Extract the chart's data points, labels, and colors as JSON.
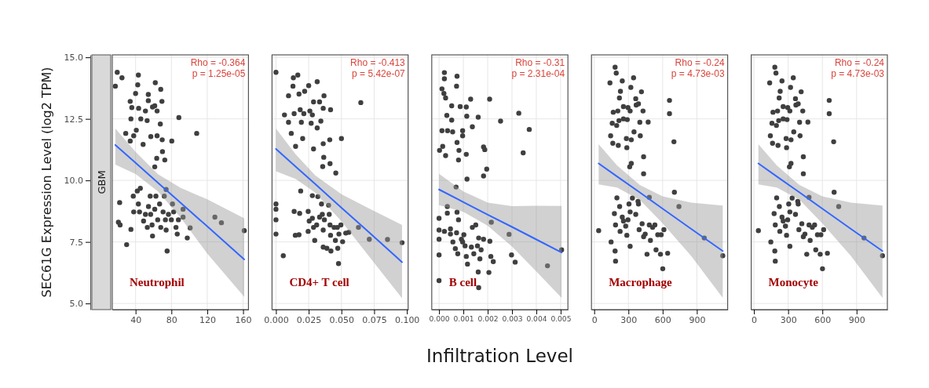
{
  "chart_data": [
    {
      "type": "scatter",
      "title": "Neutrophil",
      "subtitle": "GBM",
      "ylabel": "SEC61G Expression Level (log2 TPM)",
      "annotations": [
        "Rho = -0.364",
        "p = 1.25e-05"
      ],
      "xlim": [
        14,
        166
      ],
      "xticks": [
        40,
        80,
        120,
        160
      ],
      "ylim": [
        4.75,
        15.1
      ],
      "yticks": [
        {
          "value": 5,
          "label": "5.0"
        },
        {
          "value": 7.5,
          "label": "7.5"
        },
        {
          "value": 10,
          "label": "10.0"
        },
        {
          "value": 12.5,
          "label": "12.5"
        },
        {
          "value": 15,
          "label": "15.0"
        }
      ],
      "grid": true,
      "series": [
        {
          "type": "scatter",
          "marker": "circle",
          "color": "#3f3f3f",
          "x": [
            19.5,
            17.4,
            24.8,
            43.1,
            42.4,
            40,
            34,
            35.8,
            43.4,
            34.8,
            45.8,
            40.8,
            29,
            37.9,
            34,
            48.4,
            54.2,
            54.2,
            51,
            52.9,
            58.9,
            62,
            61.4,
            64,
            68.1,
            69.4,
            67.6,
            64,
            57,
            69.7,
            70,
            72.6,
            63.6,
            61.4,
            80.4,
            88.3,
            108.2,
            22.2,
            20.8,
            22.7,
            30,
            34.8,
            37.9,
            37.4,
            41.9,
            45.3,
            43.1,
            44.4,
            48.9,
            51,
            53.1,
            54.4,
            56.3,
            56.8,
            58.9,
            58.4,
            61.4,
            62.7,
            64.7,
            66.8,
            68.1,
            70.7,
            72,
            73.3,
            74.1,
            75.2,
            76.7,
            79.9,
            81.2,
            82.5,
            85.1,
            86.5,
            87.8,
            93,
            97.7,
            100.9,
            74.1,
            128.5,
            135.8,
            161.3,
            93
          ],
          "values": [
            14.39,
            13.83,
            14.17,
            14.28,
            13.88,
            13.53,
            13.21,
            12.96,
            12.93,
            12.5,
            12.5,
            12.04,
            11.91,
            11.81,
            11.6,
            11.46,
            13.49,
            13.24,
            12.82,
            12.43,
            12.98,
            13.97,
            13.03,
            12.82,
            13.7,
            13.21,
            12.29,
            11.81,
            11.78,
            11.65,
            11.17,
            10.83,
            10.9,
            10.55,
            11.6,
            12.55,
            11.91,
            9.1,
            8.3,
            8.19,
            7.39,
            8.01,
            8.72,
            9.36,
            9.57,
            9.68,
            9.04,
            8.72,
            8.35,
            8.62,
            8.09,
            8.94,
            9.36,
            8.62,
            7.74,
            8.19,
            8.83,
            9.36,
            8.4,
            9.04,
            8.09,
            8.72,
            9.36,
            8.4,
            7.98,
            7.13,
            8.62,
            8.4,
            9.04,
            8.72,
            8.09,
            7.82,
            8.4,
            8.83,
            7.66,
            8.07,
            9.63,
            8.51,
            8.28,
            7.96,
            8.51
          ]
        },
        {
          "type": "line",
          "line_style": "solid",
          "color": "#3366ff",
          "x": [
            17.4,
            40,
            65,
            90,
            120,
            161.3
          ],
          "values": [
            11.44,
            10.71,
            9.9,
            9.1,
            8.13,
            6.79
          ],
          "lower": [
            10.64,
            10.26,
            9.55,
            8.5,
            7.03,
            5.27
          ],
          "upper": [
            12.11,
            11.16,
            10.25,
            9.7,
            9.23,
            8.46
          ]
        }
      ]
    },
    {
      "type": "scatter",
      "title": "CD4+ T cell",
      "annotations": [
        "Rho = -0.413",
        "p = 5.42e-07"
      ],
      "xlim": [
        -0.003,
        0.101
      ],
      "xticks": [
        {
          "value": 0,
          "label": "0.000"
        },
        {
          "value": 0.025,
          "label": "0.025"
        },
        {
          "value": 0.05,
          "label": "0.050"
        },
        {
          "value": 0.075,
          "label": "0.075"
        },
        {
          "value": 0.1,
          "label": "0.100"
        }
      ],
      "ylim": [
        4.75,
        15.1
      ],
      "yticks": [
        5,
        7.5,
        10,
        12.5,
        15
      ],
      "tick_labels": "x",
      "grid": true,
      "series": [
        {
          "type": "scatter",
          "marker": "circle",
          "color": "#3f3f3f",
          "x": [
            0,
            0.0133,
            0.0167,
            0.013,
            0.0096,
            0.0176,
            0.0219,
            0.025,
            0.0315,
            0.0367,
            0.0287,
            0.0333,
            0.0065,
            0.0139,
            0.0185,
            0.0213,
            0.0259,
            0.0278,
            0.0361,
            0.0417,
            0.0096,
            0.0194,
            0.0269,
            0.0343,
            0.0315,
            0.0117,
            0.0204,
            0.0411,
            0.0361,
            0.05,
            0.015,
            0.0287,
            0.0365,
            0.0413,
            0.0357,
            0.0457,
            0.0648,
            0,
            0,
            0,
            0,
            0.0056,
            0.0139,
            0.0181,
            0.0189,
            0.0148,
            0.0176,
            0.0246,
            0.0246,
            0.0254,
            0.0278,
            0.0287,
            0.0296,
            0.0311,
            0.032,
            0.0278,
            0.0348,
            0.0354,
            0.0361,
            0.037,
            0.0361,
            0.0389,
            0.0402,
            0.0407,
            0.0413,
            0.0417,
            0.042,
            0.0444,
            0.0454,
            0.0469,
            0.0472,
            0.0481,
            0.0478,
            0.0496,
            0.0509,
            0.0533,
            0.0556,
            0.063,
            0.0713,
            0.0852,
            0.0963,
            0.0333
          ],
          "values": [
            14.39,
            14.17,
            14.28,
            13.83,
            13.44,
            13.51,
            13.62,
            13.85,
            14.01,
            13.44,
            13.19,
            13.19,
            12.66,
            12.71,
            12.87,
            12.71,
            12.82,
            12.66,
            12.93,
            12.87,
            12.36,
            12.36,
            12.32,
            12.41,
            12.13,
            11.91,
            11.7,
            11.65,
            11.49,
            11.7,
            11.38,
            11.28,
            10.94,
            10.68,
            10.56,
            10.3,
            13.16,
            9.04,
            8.83,
            8.4,
            7.82,
            6.94,
            8.74,
            8.66,
            9.57,
            7.77,
            7.79,
            8.74,
            7.93,
            8.35,
            8.46,
            8.09,
            7.56,
            8.19,
            9.34,
            9.38,
            9.04,
            8.62,
            7.98,
            8.4,
            7.29,
            7.24,
            8.99,
            8.62,
            8.19,
            7.77,
            7.13,
            8.09,
            7.56,
            8.09,
            7.24,
            7.82,
            6.62,
            8.19,
            7.51,
            7.86,
            7.89,
            8.09,
            7.61,
            7.6,
            7.47,
            8.51
          ]
        },
        {
          "type": "line",
          "line_style": "solid",
          "color": "#3366ff",
          "x": [
            0,
            0.015,
            0.03,
            0.05,
            0.07,
            0.0963
          ],
          "values": [
            11.28,
            10.56,
            9.85,
            8.89,
            7.94,
            6.68
          ],
          "lower": [
            10.37,
            10.06,
            9.5,
            8.34,
            6.99,
            5.21
          ],
          "upper": [
            12.11,
            11.06,
            10.2,
            9.44,
            8.89,
            8.19
          ]
        }
      ]
    },
    {
      "type": "scatter",
      "title": "B cell",
      "xlabel": "Infiltration Level",
      "annotations": [
        "Rho = -0.31",
        "p = 2.31e-04"
      ],
      "xlim": [
        -0.0003,
        0.0053
      ],
      "xticks": [
        {
          "value": 0,
          "label": "0.000"
        },
        {
          "value": 0.001,
          "label": "0.001"
        },
        {
          "value": 0.002,
          "label": "0.002"
        },
        {
          "value": 0.003,
          "label": "0.003"
        },
        {
          "value": 0.004,
          "label": "0.004"
        },
        {
          "value": 0.005,
          "label": "0.005"
        }
      ],
      "ylim": [
        4.75,
        15.1
      ],
      "yticks": [
        5,
        7.5,
        10,
        12.5,
        15
      ],
      "tick_labels": "x",
      "grid": true,
      "series": [
        {
          "type": "scatter",
          "marker": "circle",
          "color": "#3f3f3f",
          "x": [
            0.00022,
            0.00022,
            0.00074,
            0.00072,
            0.00012,
            0.0002,
            0.00027,
            0.00052,
            0.00087,
            0.00112,
            0.0013,
            0.00208,
            0.00032,
            0.00052,
            0.00114,
            0.00161,
            0.00137,
            0.00012,
            0.00035,
            0.00056,
            0.00097,
            0.00097,
            0.00253,
            0.00328,
            0.00371,
            0.00074,
            2e-05,
            0.00015,
            0.00082,
            0.00027,
            0.0008,
            0.00112,
            0.00183,
            0.00188,
            0.00346,
            0.00196,
            0.00183,
            0.00115,
            0.0007,
            0,
            0,
            0,
            0,
            0,
            0.00034,
            0.00034,
            0.00022,
            0.00047,
            0.00047,
            0.00074,
            0.0008,
            0.00072,
            0.00057,
            0.00067,
            0.00077,
            0.00092,
            0.00097,
            0.00102,
            0.00107,
            0.00112,
            0.00117,
            0.00133,
            0.00137,
            0.00143,
            0.00151,
            0.00158,
            0.00163,
            0.00161,
            0.00163,
            0.00168,
            0.00173,
            0.00183,
            0.00205,
            0.00209,
            0.00213,
            0.00215,
            0.00223,
            0.00288,
            0.00298,
            0.00313,
            0.00446,
            0.00504
          ],
          "values": [
            14.38,
            14.13,
            14.23,
            13.83,
            13.72,
            13.53,
            13.35,
            13.03,
            13,
            12.98,
            13.3,
            13.3,
            12.64,
            12.45,
            12.61,
            12.57,
            12.18,
            12.02,
            12.02,
            11.97,
            12.02,
            11.81,
            12.41,
            12.73,
            12.07,
            11.54,
            11.22,
            11.38,
            11.22,
            11.01,
            10.83,
            11.06,
            11.36,
            11.25,
            11.12,
            10.46,
            10.18,
            10.05,
            9.73,
            8.46,
            7.98,
            7.61,
            6.97,
            5.93,
            8.94,
            8.67,
            7.93,
            8.03,
            7.82,
            8.71,
            8.4,
            7.87,
            7.5,
            7.23,
            7.02,
            7.61,
            7.5,
            7.79,
            7.34,
            6.91,
            6.6,
            7.29,
            8.09,
            7.02,
            8.19,
            7.34,
            7.66,
            6.28,
            5.64,
            6.81,
            7.18,
            7.61,
            6.26,
            7.53,
            6.91,
            8.3,
            6.7,
            7.81,
            6.97,
            6.68,
            6.53,
            7.18
          ]
        },
        {
          "type": "line",
          "line_style": "solid",
          "color": "#3366ff",
          "x": [
            0,
            0.001,
            0.002,
            0.003,
            0.004,
            0.00504
          ],
          "values": [
            9.63,
            9.12,
            8.61,
            8.11,
            7.6,
            7.07
          ],
          "lower": [
            8.99,
            8.72,
            8.16,
            7.31,
            6.3,
            5.23
          ],
          "upper": [
            10.27,
            9.55,
            9.1,
            8.95,
            8.97,
            8.96
          ]
        }
      ]
    },
    {
      "type": "scatter",
      "title": "Macrophage",
      "annotations": [
        "Rho = -0.24",
        "p = 4.73e-03"
      ],
      "xlim": [
        -24,
        1170
      ],
      "xticks": [
        0,
        300,
        600,
        900
      ],
      "ylim": [
        4.75,
        15.1
      ],
      "yticks": [
        5,
        7.5,
        10,
        12.5,
        15
      ],
      "tick_labels": "x",
      "grid": true,
      "series": [
        {
          "type": "scatter",
          "marker": "circle",
          "color": "#3f3f3f",
          "x": [
            183,
            193,
            138,
            246,
            345,
            321,
            230,
            221,
            414,
            364,
            368,
            388,
            256,
            296,
            315,
            167,
            207,
            428,
            256,
            290,
            217,
            158,
            197,
            400,
            473,
            349,
            282,
            325,
            404,
            144,
            163,
            211,
            286,
            433,
            325,
            311,
            433,
            660,
            660,
            699,
            39,
            199,
            177,
            187,
            223,
            246,
            256,
            276,
            296,
            305,
            315,
            335,
            286,
            315,
            148,
            183,
            187,
            364,
            388,
            394,
            420,
            433,
            447,
            463,
            483,
            493,
            512,
            532,
            557,
            587,
            611,
            542,
            581,
            601,
            644,
            703,
            743,
            965,
            1127,
            483,
            384,
            227
          ],
          "values": [
            14.6,
            14.36,
            13.96,
            14.04,
            14.17,
            13.78,
            13.62,
            13.35,
            13.6,
            13.32,
            13.06,
            13.11,
            13,
            12.96,
            12.82,
            12.77,
            12.82,
            12.82,
            12.5,
            12.47,
            12.43,
            12.32,
            12.23,
            12.36,
            12.37,
            11.97,
            11.7,
            11.65,
            11.81,
            11.81,
            11.51,
            11.42,
            11.33,
            10.96,
            10.69,
            10.55,
            10.27,
            13.25,
            12.71,
            11.57,
            7.96,
            9.29,
            8.65,
            8.19,
            8.94,
            8.51,
            8.35,
            8.14,
            8.4,
            9.04,
            8.72,
            9.28,
            7.77,
            7.32,
            7.5,
            7.13,
            6.72,
            8.62,
            9.04,
            8,
            8.24,
            7.71,
            7.82,
            7,
            8.19,
            7.56,
            8.09,
            8.19,
            7.79,
            7.79,
            8,
            7.18,
            7,
            6.41,
            7.04,
            9.52,
            8.94,
            7.66,
            6.94,
            9.31,
            9.15,
            7.93
          ]
        },
        {
          "type": "line",
          "line_style": "solid",
          "color": "#3366ff",
          "x": [
            39,
            200,
            400,
            600,
            850,
            1127
          ],
          "values": [
            10.69,
            10.16,
            9.51,
            8.85,
            8.03,
            7.13
          ],
          "lower": [
            9.84,
            9.71,
            9.21,
            8.25,
            6.93,
            5.23
          ],
          "upper": [
            11.47,
            10.61,
            9.81,
            9.35,
            9.1,
            8.98
          ]
        }
      ]
    },
    {
      "type": "scatter",
      "title": "Monocyte",
      "annotations": [
        "Rho = -0.24",
        "p = 4.73e-03"
      ],
      "xlim": [
        -24,
        1170
      ],
      "xticks": [
        0,
        300,
        600,
        900
      ],
      "ylim": [
        4.75,
        15.1
      ],
      "yticks": [
        5,
        7.5,
        10,
        12.5,
        15
      ],
      "tick_labels": "x",
      "grid": true,
      "series": [
        {
          "type": "scatter",
          "marker": "circle",
          "color": "#3f3f3f",
          "x": [
            183,
            193,
            138,
            246,
            345,
            321,
            230,
            221,
            414,
            364,
            368,
            388,
            256,
            296,
            315,
            167,
            207,
            428,
            256,
            290,
            217,
            158,
            197,
            400,
            473,
            349,
            282,
            325,
            404,
            144,
            163,
            211,
            286,
            433,
            325,
            311,
            433,
            660,
            660,
            699,
            39,
            199,
            177,
            187,
            223,
            246,
            256,
            276,
            296,
            305,
            315,
            335,
            286,
            315,
            148,
            183,
            187,
            364,
            388,
            394,
            420,
            433,
            447,
            463,
            483,
            493,
            512,
            532,
            557,
            587,
            611,
            542,
            581,
            601,
            644,
            703,
            743,
            965,
            1127,
            483,
            384,
            227
          ],
          "values": [
            14.6,
            14.36,
            13.96,
            14.04,
            14.17,
            13.78,
            13.62,
            13.35,
            13.6,
            13.32,
            13.06,
            13.11,
            13,
            12.96,
            12.82,
            12.77,
            12.82,
            12.82,
            12.5,
            12.47,
            12.43,
            12.32,
            12.23,
            12.36,
            12.37,
            11.97,
            11.7,
            11.65,
            11.81,
            11.81,
            11.51,
            11.42,
            11.33,
            10.96,
            10.69,
            10.55,
            10.27,
            13.25,
            12.71,
            11.57,
            7.96,
            9.29,
            8.65,
            8.19,
            8.94,
            8.51,
            8.35,
            8.14,
            8.4,
            9.04,
            8.72,
            9.28,
            7.77,
            7.32,
            7.5,
            7.13,
            6.72,
            8.62,
            9.04,
            8,
            8.24,
            7.71,
            7.82,
            7,
            8.19,
            7.56,
            8.09,
            8.19,
            7.79,
            7.79,
            8,
            7.18,
            7,
            6.41,
            7.04,
            9.52,
            8.94,
            7.66,
            6.94,
            9.31,
            9.15,
            7.93
          ]
        },
        {
          "type": "line",
          "line_style": "solid",
          "color": "#3366ff",
          "x": [
            39,
            200,
            400,
            600,
            850,
            1127
          ],
          "values": [
            10.69,
            10.16,
            9.51,
            8.85,
            8.03,
            7.13
          ],
          "lower": [
            9.84,
            9.71,
            9.21,
            8.25,
            6.93,
            5.23
          ],
          "upper": [
            11.47,
            10.61,
            9.81,
            9.35,
            9.1,
            8.98
          ]
        }
      ]
    }
  ]
}
